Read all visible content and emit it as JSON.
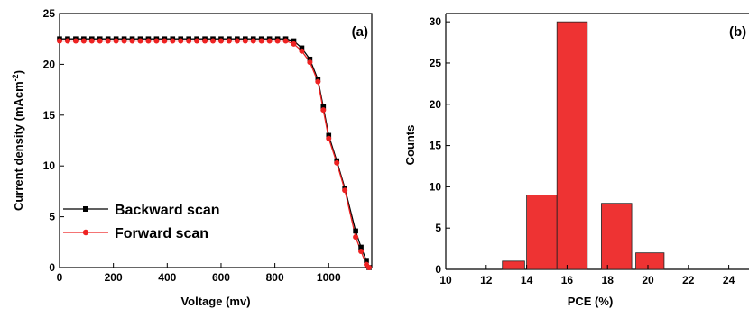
{
  "chart_data": [
    {
      "type": "line",
      "panel_label": "(a)",
      "xlabel": "Voltage (mv)",
      "ylabel_main": "Current density (mAcm",
      "ylabel_sup": "-2",
      "ylabel_close": ")",
      "xlim": [
        0,
        1160
      ],
      "ylim": [
        0,
        25
      ],
      "xticks": [
        0,
        200,
        400,
        600,
        800,
        1000
      ],
      "yticks": [
        0,
        5,
        10,
        15,
        20,
        25
      ],
      "grid": false,
      "legend_position": "bottom-left",
      "series": [
        {
          "name": "Backward scan",
          "color": "#000000",
          "marker": "square",
          "x": [
            0,
            30,
            60,
            90,
            120,
            150,
            180,
            210,
            240,
            270,
            300,
            330,
            360,
            390,
            420,
            450,
            480,
            510,
            540,
            570,
            600,
            630,
            660,
            690,
            720,
            750,
            780,
            810,
            840,
            870,
            900,
            930,
            960,
            980,
            1000,
            1030,
            1060,
            1100,
            1120,
            1140,
            1150
          ],
          "y": [
            22.5,
            22.5,
            22.5,
            22.5,
            22.5,
            22.5,
            22.5,
            22.5,
            22.5,
            22.5,
            22.5,
            22.5,
            22.5,
            22.5,
            22.5,
            22.5,
            22.5,
            22.5,
            22.5,
            22.5,
            22.5,
            22.5,
            22.5,
            22.5,
            22.5,
            22.5,
            22.5,
            22.5,
            22.5,
            22.3,
            21.6,
            20.5,
            18.5,
            15.8,
            13.0,
            10.5,
            7.8,
            3.6,
            2.0,
            0.7,
            0.0
          ]
        },
        {
          "name": "Forward scan",
          "color": "#ee2222",
          "marker": "circle",
          "x": [
            0,
            30,
            60,
            90,
            120,
            150,
            180,
            210,
            240,
            270,
            300,
            330,
            360,
            390,
            420,
            450,
            480,
            510,
            540,
            570,
            600,
            630,
            660,
            690,
            720,
            750,
            780,
            810,
            840,
            870,
            900,
            930,
            960,
            980,
            1000,
            1030,
            1060,
            1100,
            1120,
            1140,
            1150
          ],
          "y": [
            22.3,
            22.3,
            22.3,
            22.3,
            22.3,
            22.3,
            22.3,
            22.3,
            22.3,
            22.3,
            22.3,
            22.3,
            22.3,
            22.3,
            22.3,
            22.3,
            22.3,
            22.3,
            22.3,
            22.3,
            22.3,
            22.3,
            22.3,
            22.3,
            22.3,
            22.3,
            22.3,
            22.3,
            22.3,
            22.0,
            21.3,
            20.2,
            18.3,
            15.5,
            12.7,
            10.3,
            7.6,
            3.0,
            1.6,
            0.3,
            0.0
          ]
        }
      ]
    },
    {
      "type": "bar",
      "panel_label": "(b)",
      "xlabel": "PCE (%)",
      "ylabel": "Counts",
      "xlim": [
        10,
        25
      ],
      "ylim": [
        0,
        31
      ],
      "xticks": [
        10,
        12,
        14,
        16,
        18,
        20,
        22,
        24
      ],
      "yticks": [
        0,
        5,
        10,
        15,
        20,
        25,
        30
      ],
      "grid": false,
      "bar_color": "#ee3333",
      "bars": [
        {
          "x0": 12.8,
          "x1": 13.9,
          "value": 1
        },
        {
          "x0": 14.0,
          "x1": 15.5,
          "value": 9
        },
        {
          "x0": 15.5,
          "x1": 17.0,
          "value": 30
        },
        {
          "x0": 17.7,
          "x1": 19.2,
          "value": 8
        },
        {
          "x0": 19.4,
          "x1": 20.8,
          "value": 2
        }
      ]
    }
  ]
}
